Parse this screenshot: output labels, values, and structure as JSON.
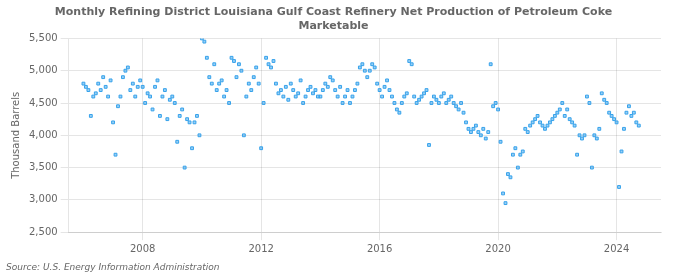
{
  "chart_data": {
    "type": "scatter",
    "title": "Monthly Refining District Louisiana Gulf Coast Refinery Net Production of Petroleum Coke\nMarketable",
    "ylabel": "Thousand Barrels",
    "annotations": [
      "Source: U.S. Energy Information Administration"
    ],
    "xlim": [
      2005.5,
      2025.5
    ],
    "xticks": [
      2008,
      2012,
      2016,
      2020,
      2024
    ],
    "ylim": [
      2500,
      5500
    ],
    "yticks": [
      {
        "value": 2500,
        "label": "2,500"
      },
      {
        "value": 3000,
        "label": "3,000"
      },
      {
        "value": 3500,
        "label": "3,500"
      },
      {
        "value": 4000,
        "label": "4,000"
      },
      {
        "value": 4500,
        "label": "4,500"
      },
      {
        "value": 5000,
        "label": "5,000"
      },
      {
        "value": 5500,
        "label": "5,500"
      }
    ],
    "grid": true,
    "marker": "square",
    "x": [
      2006.0,
      2006.083,
      2006.167,
      2006.25,
      2006.333,
      2006.417,
      2006.5,
      2006.583,
      2006.667,
      2006.75,
      2006.833,
      2006.917,
      2007.0,
      2007.083,
      2007.167,
      2007.25,
      2007.333,
      2007.417,
      2007.5,
      2007.583,
      2007.667,
      2007.75,
      2007.833,
      2007.917,
      2008.0,
      2008.083,
      2008.167,
      2008.25,
      2008.333,
      2008.417,
      2008.5,
      2008.583,
      2008.667,
      2008.75,
      2008.833,
      2008.917,
      2009.0,
      2009.083,
      2009.167,
      2009.25,
      2009.333,
      2009.417,
      2009.5,
      2009.583,
      2009.667,
      2009.75,
      2009.833,
      2009.917,
      2010.0,
      2010.083,
      2010.167,
      2010.25,
      2010.333,
      2010.417,
      2010.5,
      2010.583,
      2010.667,
      2010.75,
      2010.833,
      2010.917,
      2011.0,
      2011.083,
      2011.167,
      2011.25,
      2011.333,
      2011.417,
      2011.5,
      2011.583,
      2011.667,
      2011.75,
      2011.833,
      2011.917,
      2012.0,
      2012.083,
      2012.167,
      2012.25,
      2012.333,
      2012.417,
      2012.5,
      2012.583,
      2012.667,
      2012.75,
      2012.833,
      2012.917,
      2013.0,
      2013.083,
      2013.167,
      2013.25,
      2013.333,
      2013.417,
      2013.5,
      2013.583,
      2013.667,
      2013.75,
      2013.833,
      2013.917,
      2014.0,
      2014.083,
      2014.167,
      2014.25,
      2014.333,
      2014.417,
      2014.5,
      2014.583,
      2014.667,
      2014.75,
      2014.833,
      2014.917,
      2015.0,
      2015.083,
      2015.167,
      2015.25,
      2015.333,
      2015.417,
      2015.5,
      2015.583,
      2015.667,
      2015.75,
      2015.833,
      2015.917,
      2016.0,
      2016.083,
      2016.167,
      2016.25,
      2016.333,
      2016.417,
      2016.5,
      2016.583,
      2016.667,
      2016.75,
      2016.833,
      2016.917,
      2017.0,
      2017.083,
      2017.167,
      2017.25,
      2017.333,
      2017.417,
      2017.5,
      2017.583,
      2017.667,
      2017.75,
      2017.833,
      2017.917,
      2018.0,
      2018.083,
      2018.167,
      2018.25,
      2018.333,
      2018.417,
      2018.5,
      2018.583,
      2018.667,
      2018.75,
      2018.833,
      2018.917,
      2019.0,
      2019.083,
      2019.167,
      2019.25,
      2019.333,
      2019.417,
      2019.5,
      2019.583,
      2019.667,
      2019.75,
      2019.833,
      2019.917,
      2020.0,
      2020.083,
      2020.167,
      2020.25,
      2020.333,
      2020.417,
      2020.5,
      2020.583,
      2020.667,
      2020.75,
      2020.833,
      2020.917,
      2021.0,
      2021.083,
      2021.167,
      2021.25,
      2021.333,
      2021.417,
      2021.5,
      2021.583,
      2021.667,
      2021.75,
      2021.833,
      2021.917,
      2022.0,
      2022.083,
      2022.167,
      2022.25,
      2022.333,
      2022.417,
      2022.5,
      2022.583,
      2022.667,
      2022.75,
      2022.833,
      2022.917,
      2023.0,
      2023.083,
      2023.167,
      2023.25,
      2023.333,
      2023.417,
      2023.5,
      2023.583,
      2023.667,
      2023.75,
      2023.833,
      2023.917,
      2024.0,
      2024.083,
      2024.167,
      2024.25,
      2024.333,
      2024.417,
      2024.5,
      2024.583,
      2024.667,
      2024.75
    ],
    "values": [
      4800,
      4750,
      4700,
      4300,
      4600,
      4650,
      4800,
      4700,
      4900,
      4750,
      4600,
      4850,
      4200,
      3700,
      4450,
      4600,
      4900,
      5000,
      5050,
      4700,
      4800,
      4600,
      4750,
      4850,
      4750,
      4500,
      4650,
      4600,
      4400,
      4750,
      4850,
      4300,
      4600,
      4700,
      4250,
      4550,
      4600,
      4500,
      3900,
      4300,
      4400,
      3500,
      4250,
      4200,
      3800,
      4200,
      4300,
      4000,
      5500,
      5450,
      5200,
      4900,
      4800,
      5100,
      4700,
      4800,
      4850,
      4600,
      4700,
      4500,
      5200,
      5150,
      4900,
      5100,
      5000,
      4000,
      4600,
      4800,
      4700,
      4900,
      5050,
      4800,
      3800,
      4500,
      5200,
      5100,
      5050,
      5150,
      4800,
      4650,
      4700,
      4600,
      4750,
      4550,
      4800,
      4700,
      4600,
      4650,
      4850,
      4500,
      4600,
      4700,
      4750,
      4650,
      4700,
      4600,
      4600,
      4700,
      4800,
      4750,
      4900,
      4850,
      4700,
      4600,
      4750,
      4500,
      4600,
      4700,
      4500,
      4600,
      4700,
      4800,
      5050,
      5100,
      5000,
      4900,
      5000,
      5100,
      5050,
      4800,
      4700,
      4600,
      4750,
      4850,
      4700,
      4600,
      4500,
      4400,
      4350,
      4500,
      4600,
      4650,
      5150,
      5100,
      4600,
      4500,
      4550,
      4600,
      4650,
      4700,
      3850,
      4500,
      4600,
      4550,
      4500,
      4600,
      4650,
      4500,
      4550,
      4600,
      4500,
      4450,
      4400,
      4500,
      4350,
      4200,
      4100,
      4050,
      4100,
      4150,
      4050,
      4000,
      4100,
      3950,
      4050,
      5100,
      4450,
      4500,
      4400,
      3900,
      3100,
      2950,
      3400,
      3350,
      3700,
      3800,
      3500,
      3700,
      3750,
      4100,
      4050,
      4150,
      4200,
      4250,
      4300,
      4200,
      4150,
      4100,
      4150,
      4200,
      4250,
      4300,
      4350,
      4400,
      4500,
      4300,
      4400,
      4250,
      4200,
      4150,
      3700,
      4000,
      3950,
      4000,
      4600,
      4500,
      3500,
      4000,
      3950,
      4100,
      4650,
      4550,
      4500,
      4350,
      4300,
      4250,
      4200,
      3200,
      3750,
      4100,
      4350,
      4450,
      4300,
      4350,
      4200,
      4150
    ]
  }
}
